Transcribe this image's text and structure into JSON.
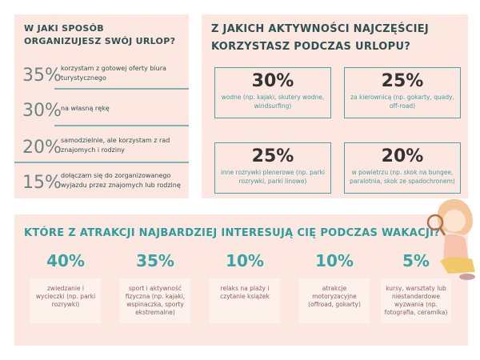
{
  "left": {
    "title": "W JAKI SPOSÓB ORGANIZUJESZ SWÓJ URLOP?",
    "items": [
      {
        "percent": "35%",
        "text": "korzystam z gotowej oferty biura turystycznego"
      },
      {
        "percent": "30%",
        "text": "na własną rękę"
      },
      {
        "percent": "20%",
        "text": "samodzielnie, ale korzystam z rad znajomych i rodziny"
      },
      {
        "percent": "15%",
        "text": "dołączam się do zorganizowanego wyjazdu przez znajomych lub rodzinę"
      }
    ]
  },
  "right": {
    "title": "Z JAKICH AKTYWNOŚCI NAJCZĘŚCIEJ KORZYSTASZ PODCZAS URLOPU?",
    "items": [
      {
        "percent": "30%",
        "text": "wodne (np. kajaki, skutery wodne, windsurfing)"
      },
      {
        "percent": "25%",
        "text": "za kierownicą (np. gokarty, quady, off-road)"
      },
      {
        "percent": "25%",
        "text": "inne rozrywki plenerowe (np. parki rozrywki, parki linowe)"
      },
      {
        "percent": "20%",
        "text": "w powietrzu (np. skok na bungee, paralotnia, skok ze spadochronem)"
      }
    ]
  },
  "bottom": {
    "title": "KTÓRE Z ATRAKCJI NAJBARDZIEJ INTERESUJĄ CIĘ PODCZAS WAKACJI?",
    "items": [
      {
        "percent": "40%",
        "text": "zwiedzanie i wycieczki (np. parki rozrywki)"
      },
      {
        "percent": "35%",
        "text": "sport i aktywność fizyczna (np. kajaki, wspinaczka, sporty ekstremalne)"
      },
      {
        "percent": "10%",
        "text": "relaks na plaży i czytanie książek"
      },
      {
        "percent": "10%",
        "text": "atrakcje motoryzacyjne (offroad, gokarty)"
      },
      {
        "percent": "5%",
        "text": "kursy, warsztaty lub niestandardowe wyzwania (np. fotografia, ceramika)"
      }
    ]
  }
}
